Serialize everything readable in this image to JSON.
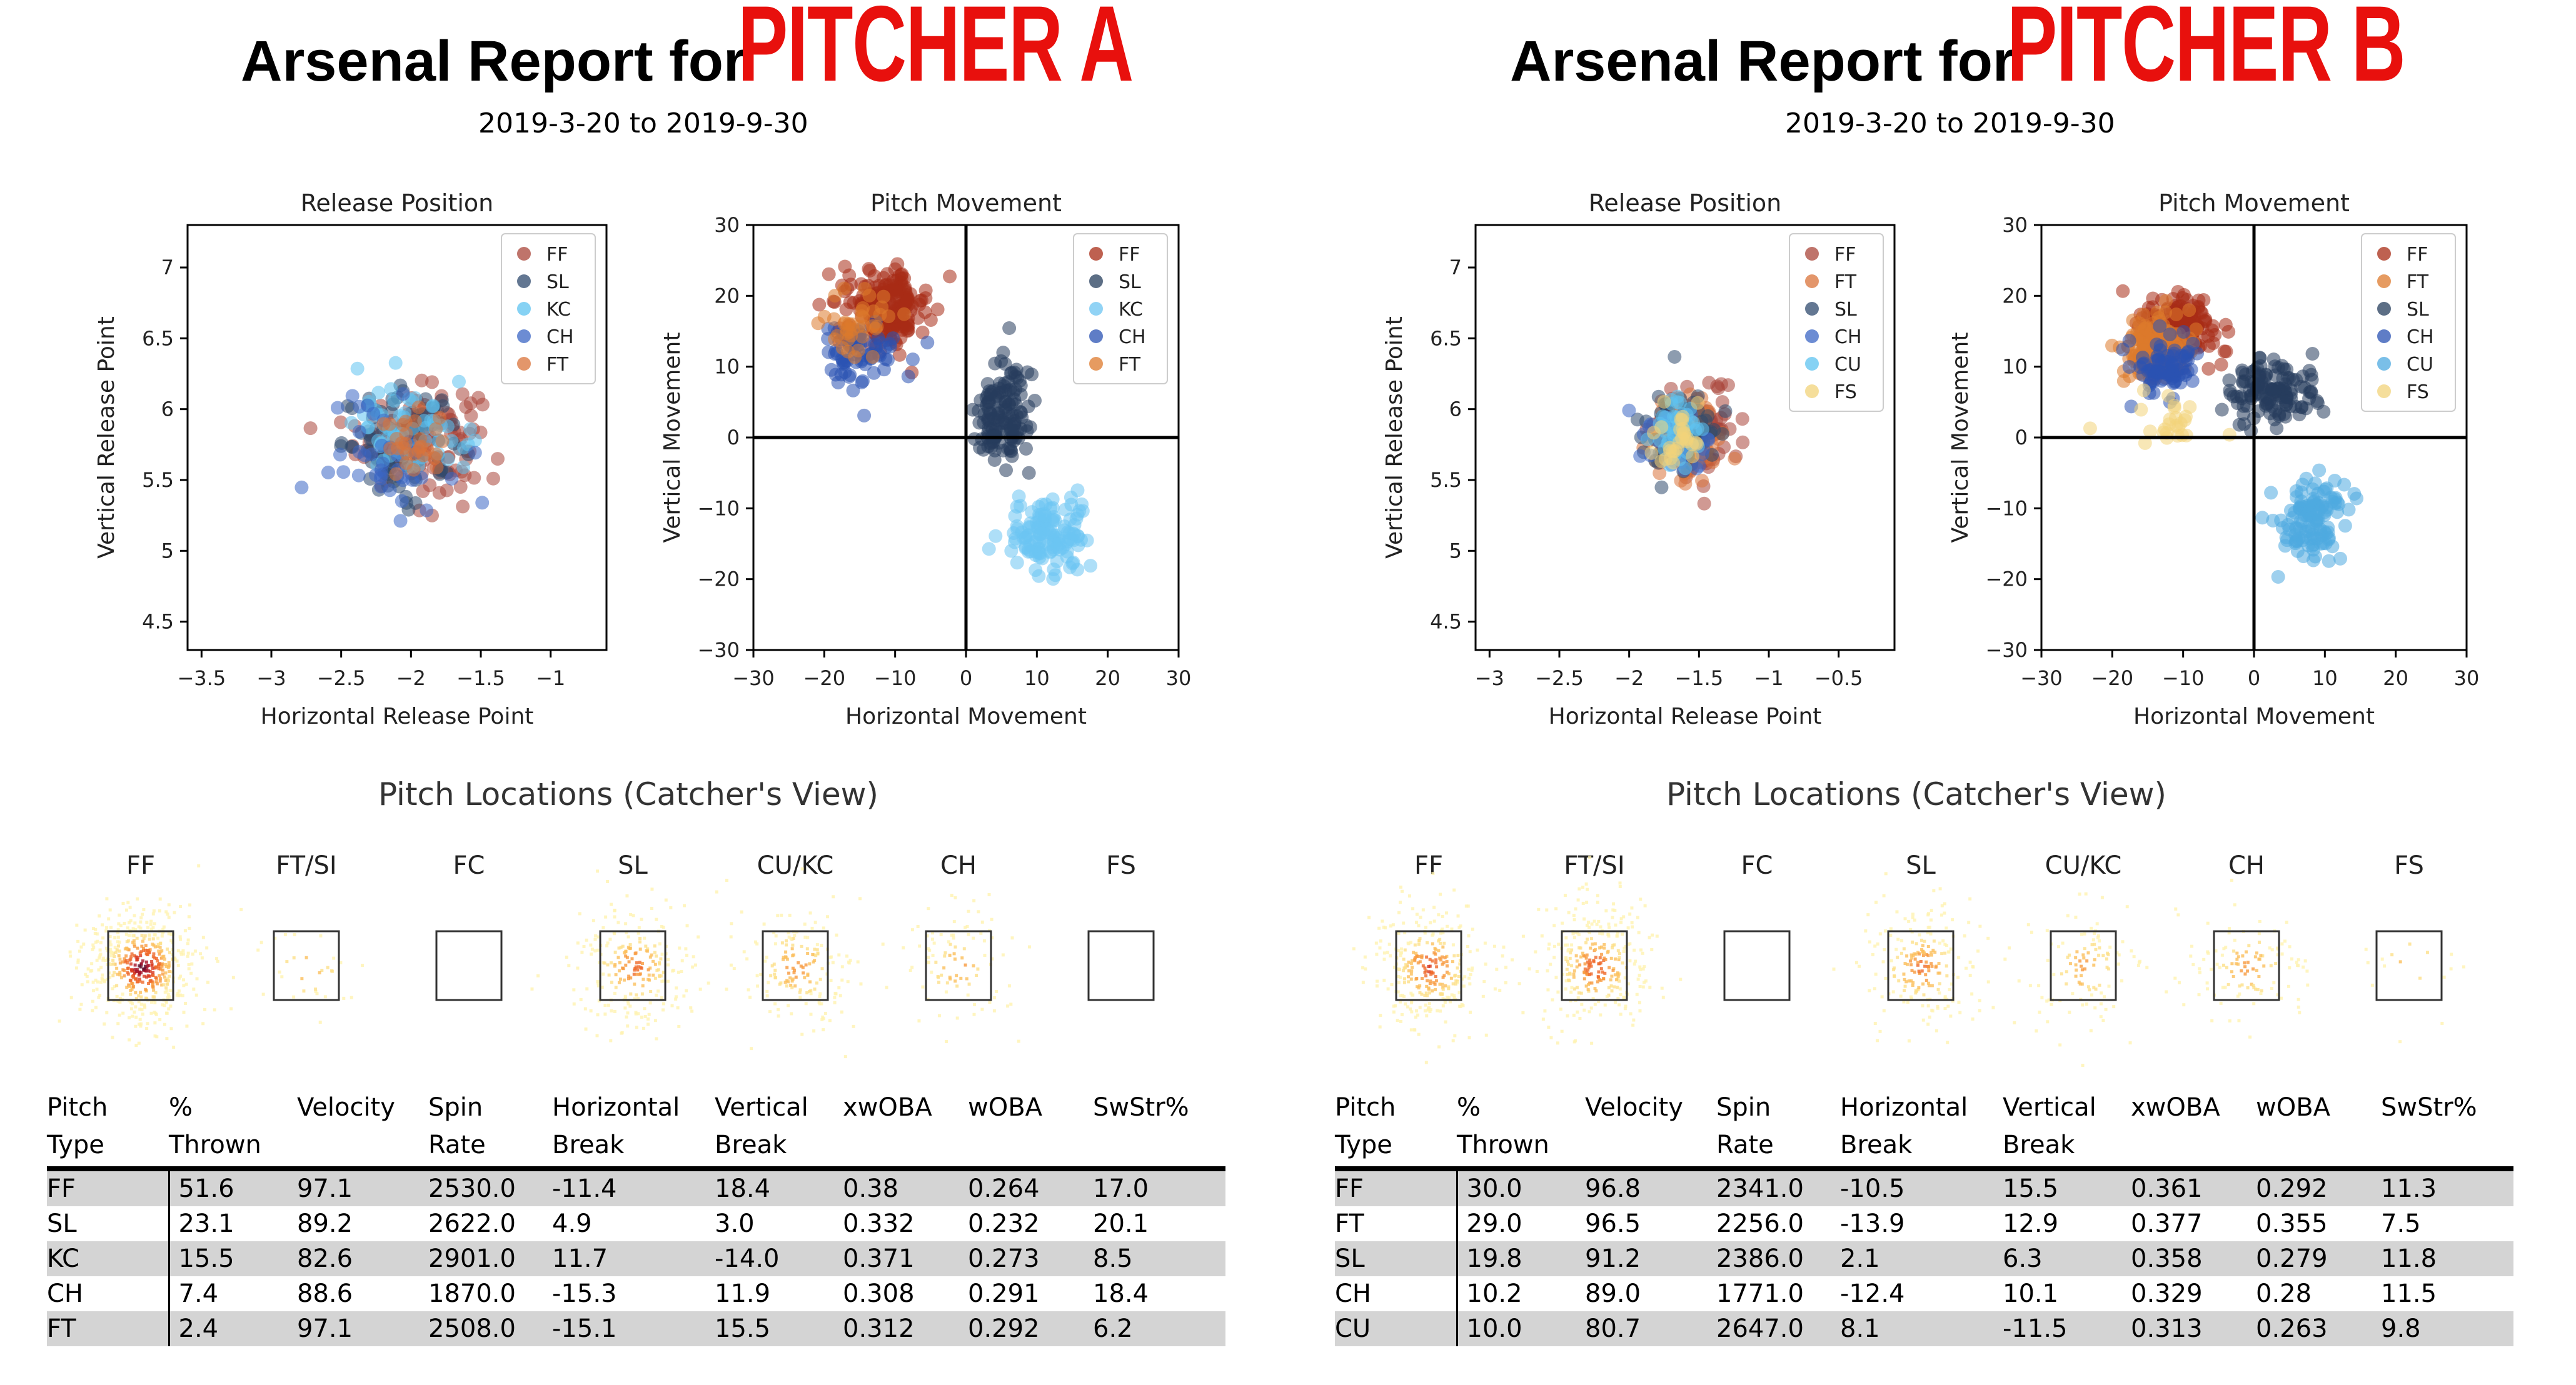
{
  "reports": [
    {
      "title_prefix": "Arsenal Report for",
      "pitcher_name": "PITCHER A",
      "date_range": "2019-3-20 to 2019-9-30",
      "release_chart": {
        "type": "scatter",
        "title": "Release Position",
        "xlabel": "Horizontal Release Point",
        "ylabel": "Vertical Release Point",
        "xlim": [
          -3.6,
          -0.6
        ],
        "ylim": [
          4.3,
          7.3
        ],
        "xticks": [
          -3.5,
          -3.0,
          -2.5,
          -2.0,
          -1.5,
          -1.0
        ],
        "yticks": [
          4.5,
          5.0,
          5.5,
          6.0,
          6.5,
          7.0
        ],
        "legend_position": "top-right",
        "series": [
          {
            "name": "FF",
            "color": "#a9453a",
            "center": [
              -1.95,
              5.8
            ],
            "spread": [
              0.22,
              0.18
            ],
            "count": 150
          },
          {
            "name": "SL",
            "color": "#2f4a6d",
            "center": [
              -2.05,
              5.75
            ],
            "spread": [
              0.22,
              0.18
            ],
            "count": 90
          },
          {
            "name": "KC",
            "color": "#5ec3f0",
            "center": [
              -2.0,
              5.85
            ],
            "spread": [
              0.2,
              0.16
            ],
            "count": 70
          },
          {
            "name": "CH",
            "color": "#3b66c4",
            "center": [
              -2.15,
              5.7
            ],
            "spread": [
              0.22,
              0.2
            ],
            "count": 40
          },
          {
            "name": "FT",
            "color": "#d9733a",
            "center": [
              -2.0,
              5.75
            ],
            "spread": [
              0.12,
              0.12
            ],
            "count": 30
          }
        ]
      },
      "movement_chart": {
        "type": "scatter",
        "title": "Pitch Movement",
        "xlabel": "Horizontal Movement",
        "ylabel": "Vertical Movement",
        "xlim": [
          -30,
          30
        ],
        "ylim": [
          -30,
          30
        ],
        "xticks": [
          -30,
          -20,
          -10,
          0,
          10,
          20,
          30
        ],
        "yticks": [
          -30,
          -20,
          -10,
          0,
          10,
          20,
          30
        ],
        "legend_position": "top-right",
        "series": [
          {
            "name": "FF",
            "color": "#a82c16",
            "center": [
              -11.4,
              18.4
            ],
            "spread": [
              3.0,
              2.6
            ],
            "count": 220
          },
          {
            "name": "SL",
            "color": "#263d5c",
            "center": [
              4.9,
              3.0
            ],
            "spread": [
              2.0,
              3.8
            ],
            "count": 140
          },
          {
            "name": "KC",
            "color": "#6cc4f2",
            "center": [
              11.7,
              -14.0
            ],
            "spread": [
              3.0,
              2.6
            ],
            "count": 130
          },
          {
            "name": "CH",
            "color": "#2a52b3",
            "center": [
              -15.3,
              11.9
            ],
            "spread": [
              2.6,
              2.4
            ],
            "count": 70
          },
          {
            "name": "FT",
            "color": "#dd7a2c",
            "center": [
              -15.1,
              15.5
            ],
            "spread": [
              2.4,
              2.4
            ],
            "count": 40
          }
        ]
      },
      "locations_title": "Pitch Locations (Catcher's View)",
      "location_labels": [
        "FF",
        "FT/SI",
        "FC",
        "SL",
        "CU/KC",
        "CH",
        "FS"
      ],
      "location_density": [
        1.0,
        0.06,
        0,
        0.45,
        0.33,
        0.18,
        0
      ],
      "table": {
        "headers": [
          [
            "Pitch",
            "Type"
          ],
          [
            "%",
            "Thrown"
          ],
          [
            "Velocity",
            ""
          ],
          [
            "Spin",
            "Rate"
          ],
          [
            "Horizontal",
            "Break"
          ],
          [
            "Vertical",
            "Break"
          ],
          [
            "xwOBA",
            ""
          ],
          [
            "wOBA",
            ""
          ],
          [
            "SwStr%",
            ""
          ]
        ],
        "rows": [
          [
            "FF",
            "51.6",
            "97.1",
            "2530.0",
            "-11.4",
            "18.4",
            "0.38",
            "0.264",
            "17.0"
          ],
          [
            "SL",
            "23.1",
            "89.2",
            "2622.0",
            "4.9",
            "3.0",
            "0.332",
            "0.232",
            "20.1"
          ],
          [
            "KC",
            "15.5",
            "82.6",
            "2901.0",
            "11.7",
            "-14.0",
            "0.371",
            "0.273",
            "8.5"
          ],
          [
            "CH",
            "7.4",
            "88.6",
            "1870.0",
            "-15.3",
            "11.9",
            "0.308",
            "0.291",
            "18.4"
          ],
          [
            "FT",
            "2.4",
            "97.1",
            "2508.0",
            "-15.1",
            "15.5",
            "0.312",
            "0.292",
            "6.2"
          ]
        ]
      }
    },
    {
      "title_prefix": "Arsenal Report for",
      "pitcher_name": "PITCHER B",
      "date_range": "2019-3-20 to 2019-9-30",
      "release_chart": {
        "type": "scatter",
        "title": "Release Position",
        "xlabel": "Horizontal Release Point",
        "ylabel": "Vertical Release Point",
        "xlim": [
          -3.1,
          -0.1
        ],
        "ylim": [
          4.3,
          7.3
        ],
        "xticks": [
          -3.0,
          -2.5,
          -2.0,
          -1.5,
          -1.0,
          -0.5
        ],
        "yticks": [
          4.5,
          5.0,
          5.5,
          6.0,
          6.5,
          7.0
        ],
        "legend_position": "top-right",
        "series": [
          {
            "name": "FF",
            "color": "#a9453a",
            "center": [
              -1.5,
              5.85
            ],
            "spread": [
              0.14,
              0.16
            ],
            "count": 110
          },
          {
            "name": "FT",
            "color": "#d9733a",
            "center": [
              -1.6,
              5.8
            ],
            "spread": [
              0.14,
              0.15
            ],
            "count": 100
          },
          {
            "name": "SL",
            "color": "#2f4a6d",
            "center": [
              -1.6,
              5.85
            ],
            "spread": [
              0.14,
              0.15
            ],
            "count": 60
          },
          {
            "name": "CH",
            "color": "#3b66c4",
            "center": [
              -1.65,
              5.8
            ],
            "spread": [
              0.13,
              0.14
            ],
            "count": 35
          },
          {
            "name": "CU",
            "color": "#5ec3f0",
            "center": [
              -1.65,
              5.85
            ],
            "spread": [
              0.1,
              0.12
            ],
            "count": 45
          },
          {
            "name": "FS",
            "color": "#f2d37a",
            "center": [
              -1.65,
              5.8
            ],
            "spread": [
              0.08,
              0.1
            ],
            "count": 30
          }
        ]
      },
      "movement_chart": {
        "type": "scatter",
        "title": "Pitch Movement",
        "xlabel": "Horizontal Movement",
        "ylabel": "Vertical Movement",
        "xlim": [
          -30,
          30
        ],
        "ylim": [
          -30,
          30
        ],
        "xticks": [
          -30,
          -20,
          -10,
          0,
          10,
          20,
          30
        ],
        "yticks": [
          -30,
          -20,
          -10,
          0,
          10,
          20,
          30
        ],
        "legend_position": "top-right",
        "series": [
          {
            "name": "FF",
            "color": "#a82c16",
            "center": [
              -10.5,
              15.5
            ],
            "spread": [
              2.8,
              2.4
            ],
            "count": 160
          },
          {
            "name": "FT",
            "color": "#dd7a2c",
            "center": [
              -13.9,
              12.9
            ],
            "spread": [
              2.6,
              2.4
            ],
            "count": 150
          },
          {
            "name": "SL",
            "color": "#263d5c",
            "center": [
              2.1,
              6.3
            ],
            "spread": [
              3.0,
              2.4
            ],
            "count": 130
          },
          {
            "name": "CH",
            "color": "#2a52b3",
            "center": [
              -12.4,
              10.1
            ],
            "spread": [
              2.6,
              2.4
            ],
            "count": 80
          },
          {
            "name": "CU",
            "color": "#4ea9e0",
            "center": [
              8.1,
              -11.5
            ],
            "spread": [
              2.4,
              2.6
            ],
            "count": 120
          },
          {
            "name": "FS",
            "color": "#f2d37a",
            "center": [
              -12.0,
              2.0
            ],
            "spread": [
              3.5,
              2.0
            ],
            "count": 25
          }
        ]
      },
      "locations_title": "Pitch Locations (Catcher's View)",
      "location_labels": [
        "FF",
        "FT/SI",
        "FC",
        "SL",
        "CU/KC",
        "CH",
        "FS"
      ],
      "location_density": [
        0.6,
        0.58,
        0,
        0.4,
        0.22,
        0.22,
        0.03
      ],
      "table": {
        "headers": [
          [
            "Pitch",
            "Type"
          ],
          [
            "%",
            "Thrown"
          ],
          [
            "Velocity",
            ""
          ],
          [
            "Spin",
            "Rate"
          ],
          [
            "Horizontal",
            "Break"
          ],
          [
            "Vertical",
            "Break"
          ],
          [
            "xwOBA",
            ""
          ],
          [
            "wOBA",
            ""
          ],
          [
            "SwStr%",
            ""
          ]
        ],
        "rows": [
          [
            "FF",
            "30.0",
            "96.8",
            "2341.0",
            "-10.5",
            "15.5",
            "0.361",
            "0.292",
            "11.3"
          ],
          [
            "FT",
            "29.0",
            "96.5",
            "2256.0",
            "-13.9",
            "12.9",
            "0.377",
            "0.355",
            "7.5"
          ],
          [
            "SL",
            "19.8",
            "91.2",
            "2386.0",
            "2.1",
            "6.3",
            "0.358",
            "0.279",
            "11.8"
          ],
          [
            "CH",
            "10.2",
            "89.0",
            "1771.0",
            "-12.4",
            "10.1",
            "0.329",
            "0.28",
            "11.5"
          ],
          [
            "CU",
            "10.0",
            "80.7",
            "2647.0",
            "8.1",
            "-11.5",
            "0.313",
            "0.263",
            "9.8"
          ]
        ]
      }
    }
  ]
}
